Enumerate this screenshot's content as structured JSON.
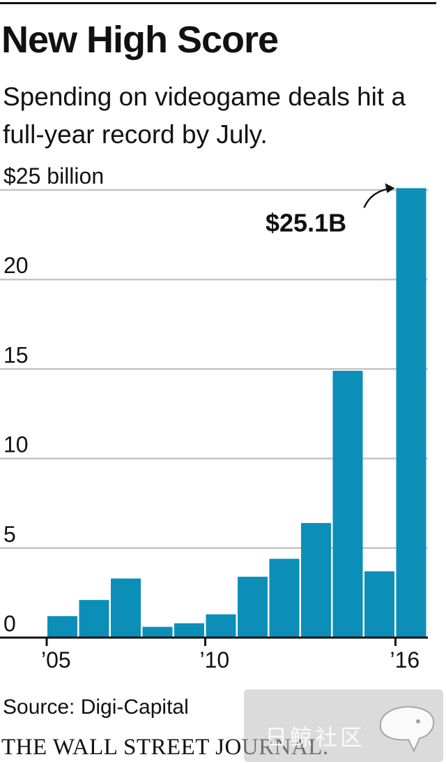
{
  "header": {
    "title": "New High Score",
    "subtitle": "Spending on videogame deals hit a full-year record by July."
  },
  "chart_data": {
    "type": "bar",
    "title": "New High Score",
    "subtitle": "Spending on videogame deals hit a full-year record by July.",
    "unit_label": "$25 billion",
    "ylabel": "",
    "xlabel": "",
    "ylim": [
      0,
      25
    ],
    "yticks": [
      0,
      5,
      10,
      15,
      20,
      25
    ],
    "ytick_labels": [
      "0",
      "5",
      "10",
      "15",
      "20",
      "$25 billion"
    ],
    "categories": [
      "2005",
      "2006",
      "2007",
      "2008",
      "2009",
      "2010",
      "2011",
      "2012",
      "2013",
      "2014",
      "2015",
      "2016"
    ],
    "xtick_labels": [
      {
        "category": "2005",
        "label": "’05"
      },
      {
        "category": "2010",
        "label": "’10"
      },
      {
        "category": "2016",
        "label": "’16"
      }
    ],
    "values": [
      1.2,
      2.1,
      3.3,
      0.6,
      0.8,
      1.3,
      3.4,
      4.4,
      6.4,
      14.9,
      3.7,
      25.1
    ],
    "annotation": {
      "category": "2016",
      "text": "$25.1B"
    },
    "bar_color": "#0b8fb8",
    "grid": true
  },
  "footer": {
    "source": "Source: Digi-Capital",
    "masthead": "THE WALL STREET JOURNAL."
  },
  "watermark": {
    "text": "日鲸社区"
  }
}
